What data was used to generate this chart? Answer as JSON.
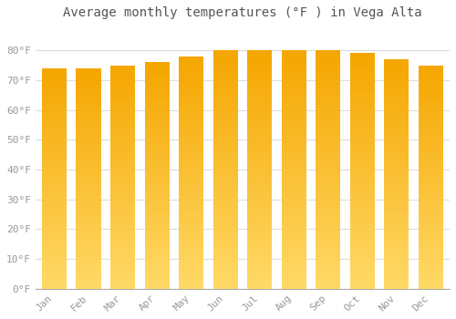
{
  "title": "Average monthly temperatures (°F ) in Vega Alta",
  "months": [
    "Jan",
    "Feb",
    "Mar",
    "Apr",
    "May",
    "Jun",
    "Jul",
    "Aug",
    "Sep",
    "Oct",
    "Nov",
    "Dec"
  ],
  "values": [
    74,
    74,
    75,
    76,
    78,
    80,
    80,
    80,
    80,
    79,
    77,
    75
  ],
  "bar_color_dark": "#F5A800",
  "bar_color_light": "#FFD966",
  "ylim": [
    0,
    88
  ],
  "yticks": [
    0,
    10,
    20,
    30,
    40,
    50,
    60,
    70,
    80
  ],
  "ytick_labels": [
    "0°F",
    "10°F",
    "20°F",
    "30°F",
    "40°F",
    "50°F",
    "60°F",
    "70°F",
    "80°F"
  ],
  "background_color": "#ffffff",
  "grid_color": "#dddddd",
  "title_fontsize": 10,
  "tick_fontsize": 8,
  "font_color": "#999999"
}
